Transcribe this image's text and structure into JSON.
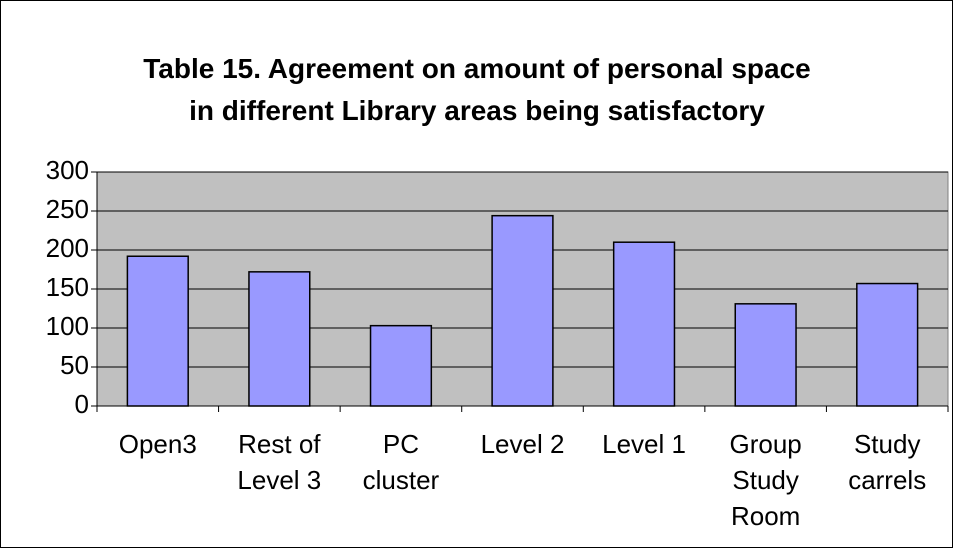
{
  "chart_data": {
    "type": "bar",
    "title": "Table 15. Agreement on amount of  personal space\nin different Library areas being satisfactory",
    "categories": [
      "Open3",
      "Rest of\nLevel 3",
      "PC\ncluster",
      "Level 2",
      "Level 1",
      "Group\nStudy\nRoom",
      "Study\ncarrels"
    ],
    "values": [
      192,
      172,
      103,
      244,
      210,
      131,
      157
    ],
    "color": "#9999ff",
    "plot_color": "#c0c0c0",
    "ylim": [
      0,
      300
    ],
    "yticks": [
      0,
      50,
      100,
      150,
      200,
      250,
      300
    ],
    "grid": true
  }
}
